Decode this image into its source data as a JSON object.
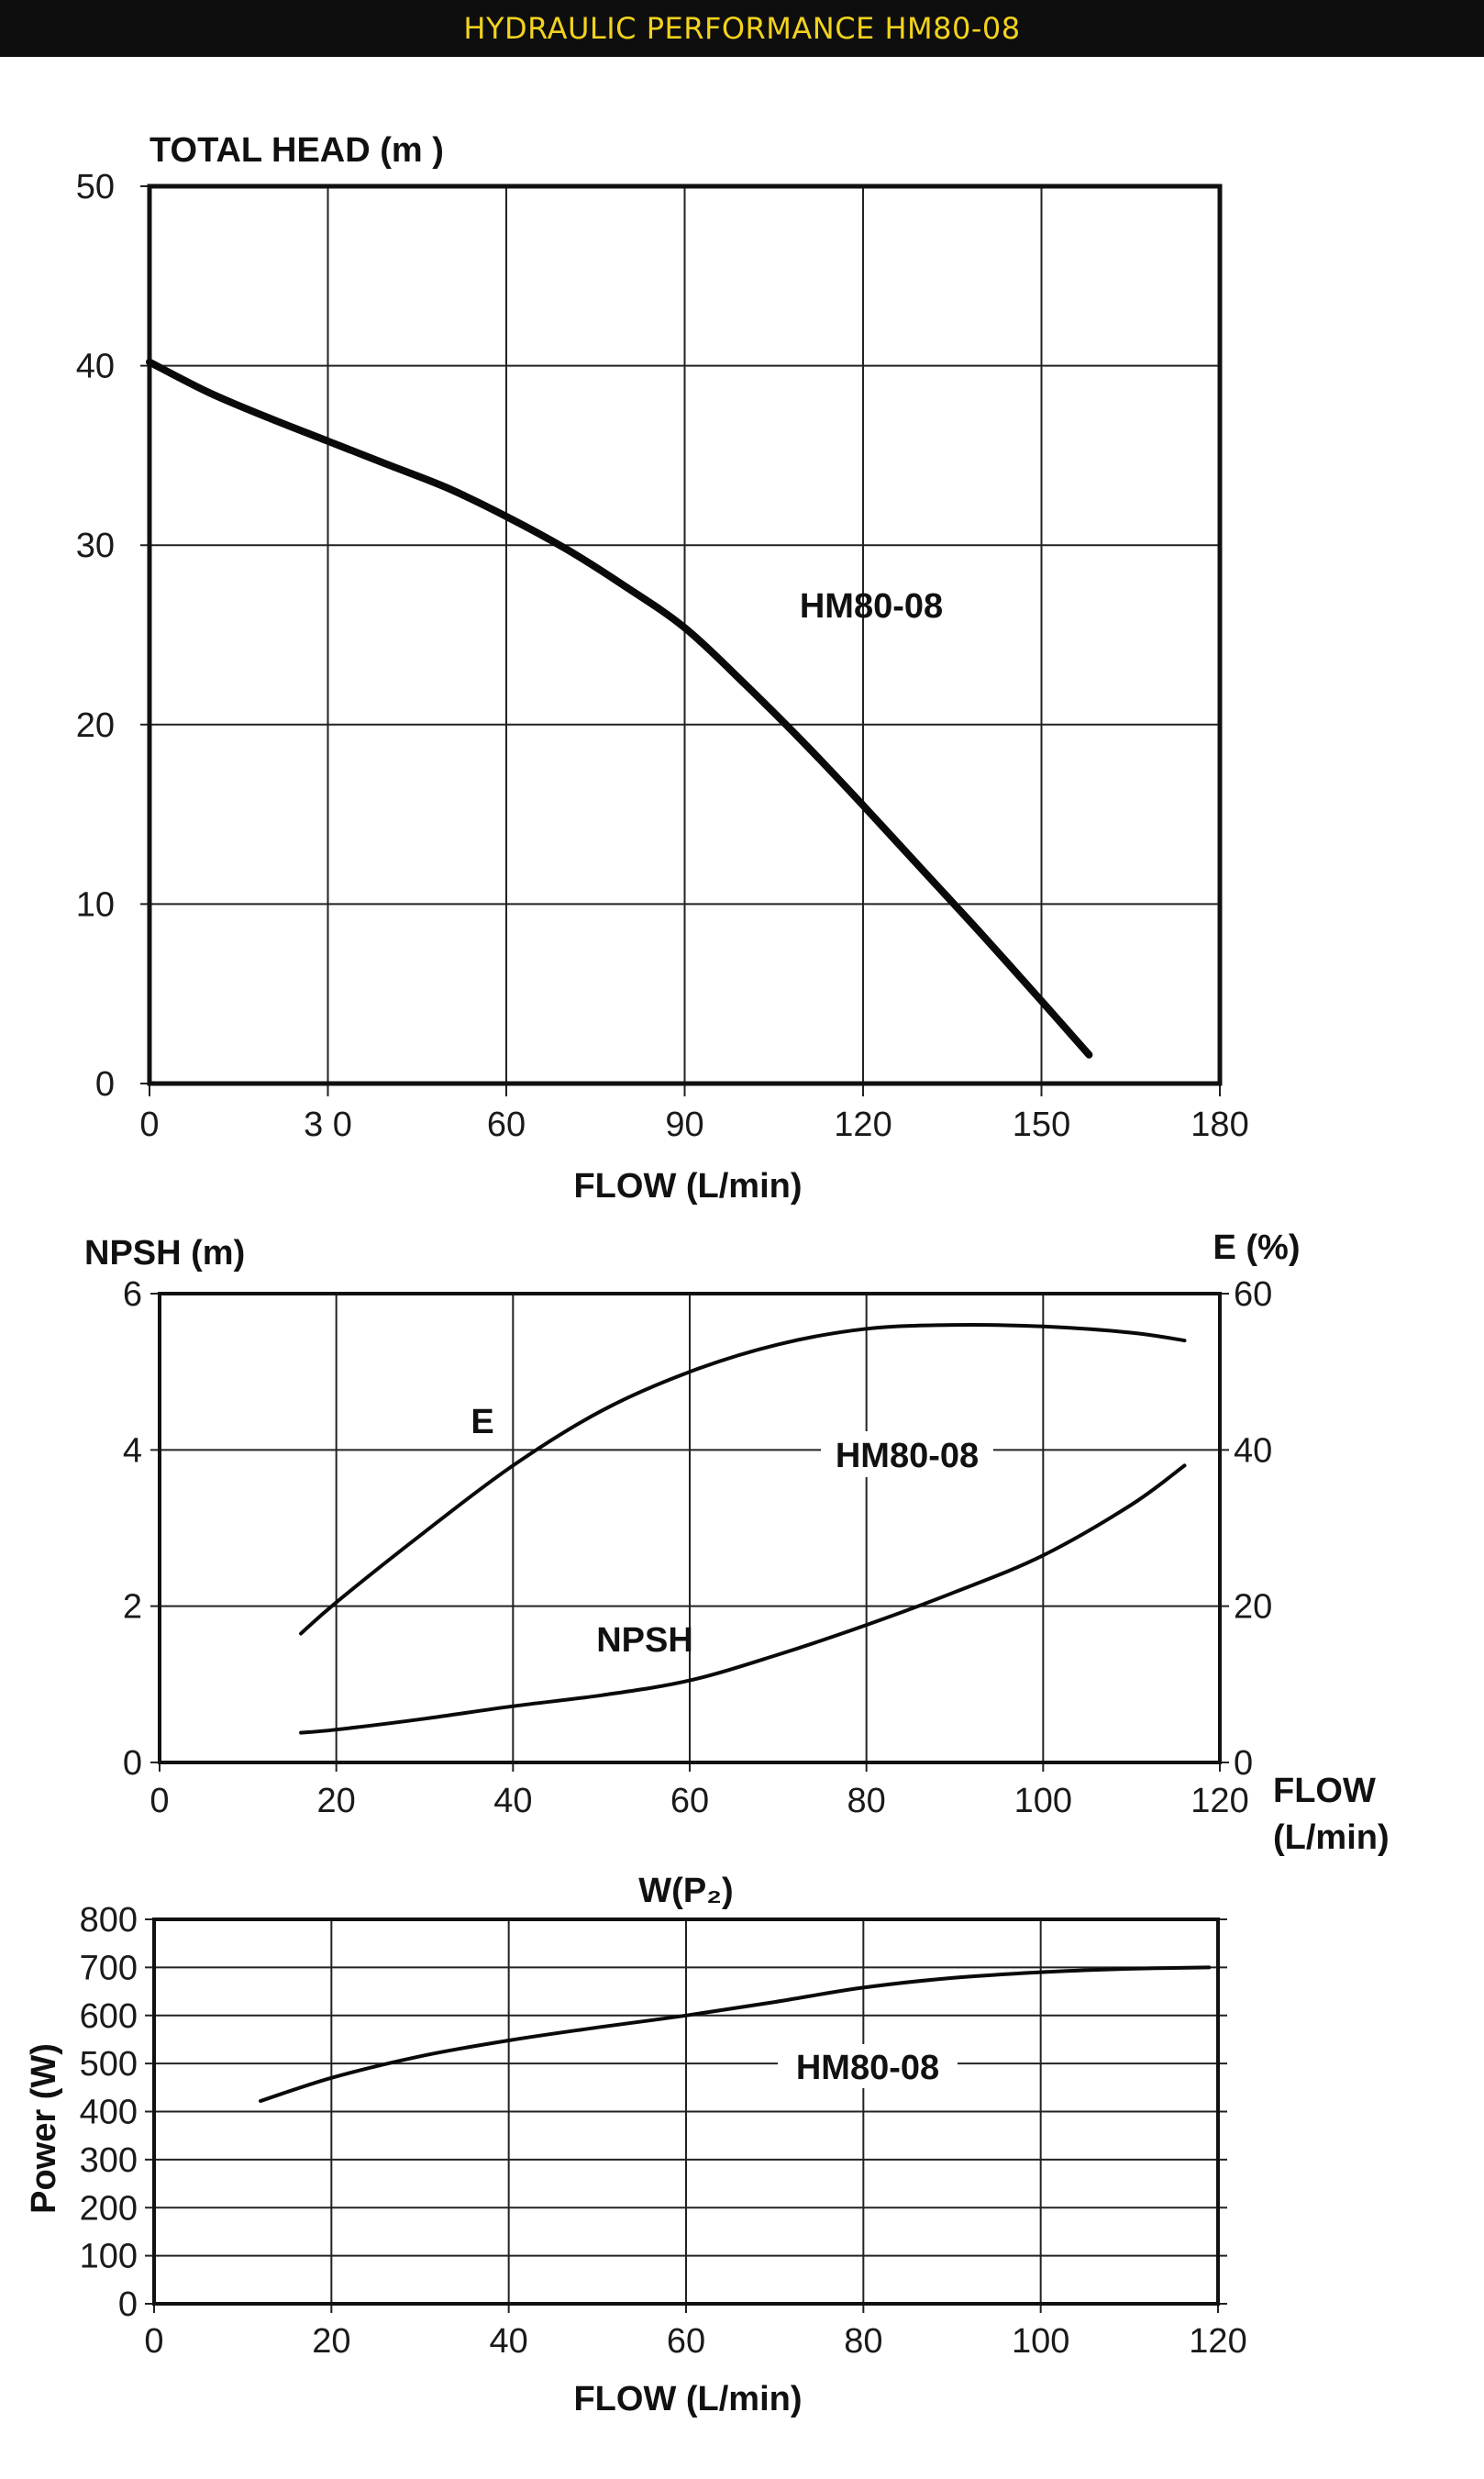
{
  "header": {
    "title": "HYDRAULIC PERFORMANCE HM80-08"
  },
  "chart_data": [
    {
      "type": "line",
      "ylabel": "TOTAL HEAD (m )",
      "xlabel": "FLOW (L/min)",
      "xlim": [
        0,
        180
      ],
      "ylim": [
        0,
        50
      ],
      "x_ticks": [
        "0",
        "3 0",
        "60",
        "90",
        "120",
        "150",
        "180"
      ],
      "y_ticks": [
        "0",
        "10",
        "20",
        "30",
        "40",
        "50"
      ],
      "grid": true,
      "series": [
        {
          "name": "HM80-08",
          "x": [
            0,
            10,
            20,
            30,
            40,
            50,
            60,
            70,
            80,
            90,
            100,
            110,
            120,
            130,
            140,
            150,
            158
          ],
          "y": [
            40.2,
            38.5,
            37.1,
            35.8,
            34.5,
            33.2,
            31.6,
            29.8,
            27.7,
            25.4,
            22.3,
            19.0,
            15.5,
            11.9,
            8.3,
            4.6,
            1.6
          ]
        }
      ]
    },
    {
      "type": "line",
      "ylabel": "NPSH (m)",
      "y2label": "E (%)",
      "xlabel": "FLOW\n(L/min)",
      "xlim": [
        0,
        120
      ],
      "ylim": [
        0,
        6
      ],
      "y2lim": [
        0,
        60
      ],
      "x_ticks": [
        "0",
        "20",
        "40",
        "60",
        "80",
        "100",
        "120"
      ],
      "y_ticks": [
        "0",
        "2",
        "4",
        "6"
      ],
      "y2_ticks": [
        "0",
        "20",
        "40",
        "60"
      ],
      "grid": true,
      "model_label": "HM80-08",
      "series": [
        {
          "name": "E",
          "axis": "right",
          "x": [
            16,
            20,
            30,
            40,
            50,
            60,
            70,
            80,
            90,
            100,
            110,
            116
          ],
          "y": [
            16.5,
            20.5,
            29.5,
            38.0,
            45.0,
            50.0,
            53.5,
            55.5,
            56.0,
            55.8,
            55.0,
            54.0
          ]
        },
        {
          "name": "NPSH",
          "axis": "left",
          "x": [
            16,
            20,
            30,
            40,
            50,
            60,
            70,
            80,
            90,
            100,
            110,
            116
          ],
          "y": [
            0.38,
            0.42,
            0.56,
            0.72,
            0.86,
            1.05,
            1.38,
            1.76,
            2.18,
            2.65,
            3.3,
            3.8
          ]
        }
      ]
    },
    {
      "type": "line",
      "title": "W(P₂)",
      "ylabel": "Power (W)",
      "xlabel": "FLOW (L/min)",
      "xlim": [
        0,
        120
      ],
      "ylim": [
        0,
        800
      ],
      "x_ticks": [
        "0",
        "20",
        "40",
        "60",
        "80",
        "100",
        "120"
      ],
      "y_ticks": [
        "0",
        "100",
        "200",
        "300",
        "400",
        "500",
        "600",
        "700",
        "800"
      ],
      "grid": true,
      "series": [
        {
          "name": "HM80-08",
          "x": [
            12,
            20,
            30,
            40,
            50,
            60,
            70,
            80,
            90,
            100,
            110,
            119
          ],
          "y": [
            422,
            470,
            515,
            548,
            575,
            600,
            628,
            658,
            678,
            690,
            697,
            700
          ]
        }
      ]
    }
  ]
}
